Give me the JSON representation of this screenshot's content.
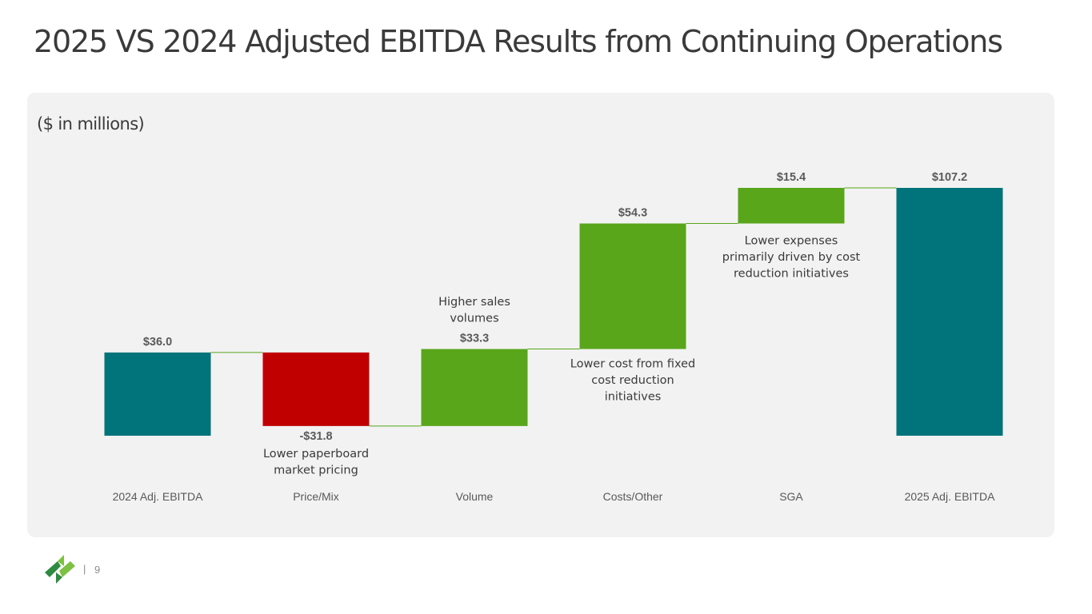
{
  "slide": {
    "title": "2025 VS 2024 Adjusted EBITDA Results from Continuing  Operations",
    "units_note": "($ in millions)",
    "page_separator": "|",
    "page_number": "9"
  },
  "chart_data": {
    "type": "bar",
    "subtype": "waterfall",
    "categories": [
      "2024 Adj. EBITDA",
      "Price/Mix",
      "Volume",
      "Costs/Other",
      "SGA",
      "2025 Adj. EBITDA"
    ],
    "values": [
      36.0,
      -31.8,
      33.3,
      54.3,
      15.4,
      107.2
    ],
    "kinds": [
      "total",
      "delta",
      "delta",
      "delta",
      "delta",
      "total"
    ],
    "value_labels": [
      "$36.0",
      "-$31.8",
      "$33.3",
      "$54.3",
      "$15.4",
      "$107.2"
    ],
    "annotations": [
      "",
      "Lower paperboard\nmarket pricing",
      "Higher sales\nvolumes",
      "Lower cost from fixed\ncost reduction\ninitiatives",
      "Lower expenses\nprimarily driven by cost\nreduction initiatives",
      ""
    ],
    "colors": {
      "total": "#00747a",
      "increase": "#59a61b",
      "decrease": "#c00000",
      "connector": "#59a61b",
      "label": "#5a5a5a",
      "annotation": "#3a3a3a",
      "axis_label": "#595959"
    },
    "ylim": [
      0,
      107.2
    ],
    "grid": false,
    "legend": "none"
  },
  "logo": {
    "name": "company-logo",
    "colors": [
      "#2d8a3e",
      "#7cc142"
    ]
  }
}
